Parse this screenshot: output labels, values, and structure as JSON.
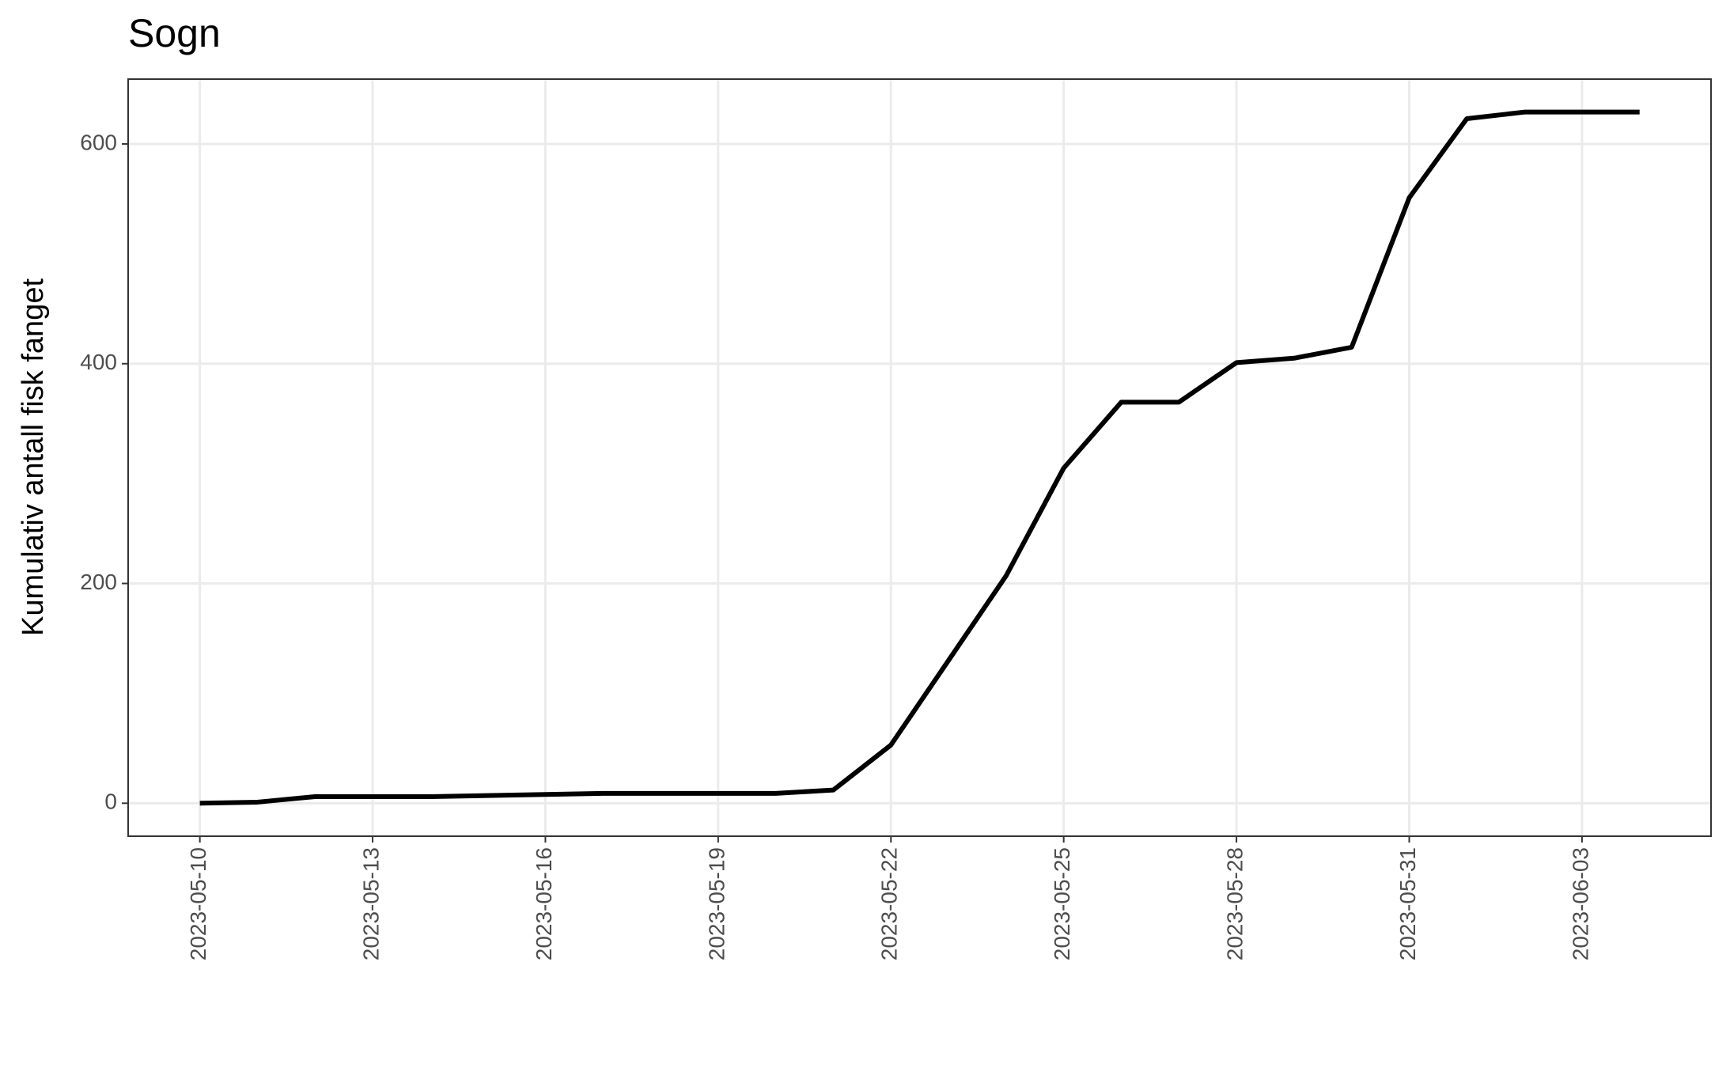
{
  "chart_data": {
    "type": "line",
    "title": "Sogn",
    "y_label": "Kumulativ antall fisk fanget",
    "x": [
      "2023-05-10",
      "2023-05-11",
      "2023-05-12",
      "2023-05-13",
      "2023-05-14",
      "2023-05-15",
      "2023-05-16",
      "2023-05-17",
      "2023-05-18",
      "2023-05-19",
      "2023-05-20",
      "2023-05-21",
      "2023-05-22",
      "2023-05-23",
      "2023-05-24",
      "2023-05-25",
      "2023-05-26",
      "2023-05-27",
      "2023-05-28",
      "2023-05-29",
      "2023-05-30",
      "2023-05-31",
      "2023-06-01",
      "2023-06-02",
      "2023-06-03",
      "2023-06-04"
    ],
    "values": [
      0,
      1,
      6,
      6,
      6,
      7,
      8,
      9,
      9,
      9,
      9,
      12,
      53,
      130,
      207,
      305,
      365,
      365,
      401,
      405,
      415,
      551,
      623,
      629,
      629,
      629
    ],
    "color": "#000000",
    "xlim": [
      "2023-05-08T18:07",
      "2023-06-05T05:46"
    ],
    "xticks": [
      "2023-05-10",
      "2023-05-13",
      "2023-05-16",
      "2023-05-19",
      "2023-05-22",
      "2023-05-25",
      "2023-05-28",
      "2023-05-31",
      "2023-06-03"
    ],
    "ylim": [
      -30,
      659
    ],
    "yticks": [
      0,
      200,
      400,
      600
    ],
    "grid": true
  }
}
